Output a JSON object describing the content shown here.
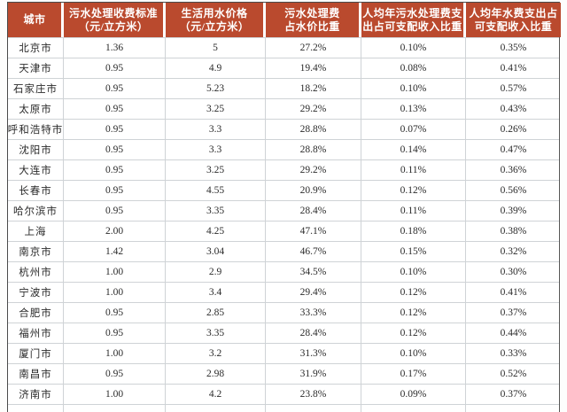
{
  "colors": {
    "header_bg": "#ba4a2e",
    "header_text": "#ffffff",
    "grid_line": "#cfd3d6",
    "outer_border": "#4a4a4a",
    "body_text": "#2b2b2b"
  },
  "table": {
    "columns": [
      {
        "id": "city",
        "label_lines": [
          "城市"
        ]
      },
      {
        "id": "sewage-fee-standard",
        "label_lines": [
          "污水处理收费标准",
          "（元/立方米）"
        ]
      },
      {
        "id": "domestic-water-price",
        "label_lines": [
          "生活用水价格",
          "（元/立方米）"
        ]
      },
      {
        "id": "fee-share-of-water-price",
        "label_lines": [
          "污水处理费",
          "占水价比重"
        ]
      },
      {
        "id": "sewage-fee-share-of-income",
        "label_lines": [
          "人均年污水处理费支",
          "出占可支配收入比重"
        ]
      },
      {
        "id": "water-fee-share-of-income",
        "label_lines": [
          "人均年水费支出占",
          "可支配收入比重"
        ]
      }
    ],
    "rows": [
      [
        "北京市",
        "1.36",
        "5",
        "27.2%",
        "0.10%",
        "0.35%"
      ],
      [
        "天津市",
        "0.95",
        "4.9",
        "19.4%",
        "0.08%",
        "0.41%"
      ],
      [
        "石家庄市",
        "0.95",
        "5.23",
        "18.2%",
        "0.10%",
        "0.57%"
      ],
      [
        "太原市",
        "0.95",
        "3.25",
        "29.2%",
        "0.13%",
        "0.43%"
      ],
      [
        "呼和浩特市",
        "0.95",
        "3.3",
        "28.8%",
        "0.07%",
        "0.26%"
      ],
      [
        "沈阳市",
        "0.95",
        "3.3",
        "28.8%",
        "0.14%",
        "0.47%"
      ],
      [
        "大连市",
        "0.95",
        "3.25",
        "29.2%",
        "0.11%",
        "0.36%"
      ],
      [
        "长春市",
        "0.95",
        "4.55",
        "20.9%",
        "0.12%",
        "0.56%"
      ],
      [
        "哈尔滨市",
        "0.95",
        "3.35",
        "28.4%",
        "0.11%",
        "0.39%"
      ],
      [
        "上海",
        "2.00",
        "4.25",
        "47.1%",
        "0.18%",
        "0.38%"
      ],
      [
        "南京市",
        "1.42",
        "3.04",
        "46.7%",
        "0.15%",
        "0.32%"
      ],
      [
        "杭州市",
        "1.00",
        "2.9",
        "34.5%",
        "0.10%",
        "0.30%"
      ],
      [
        "宁波市",
        "1.00",
        "3.4",
        "29.4%",
        "0.12%",
        "0.41%"
      ],
      [
        "合肥市",
        "0.95",
        "2.85",
        "33.3%",
        "0.12%",
        "0.37%"
      ],
      [
        "福州市",
        "0.95",
        "3.35",
        "28.4%",
        "0.12%",
        "0.44%"
      ],
      [
        "厦门市",
        "1.00",
        "3.2",
        "31.3%",
        "0.10%",
        "0.33%"
      ],
      [
        "南昌市",
        "0.95",
        "2.98",
        "31.9%",
        "0.17%",
        "0.52%"
      ],
      [
        "济南市",
        "1.00",
        "4.2",
        "23.8%",
        "0.09%",
        "0.37%"
      ]
    ]
  }
}
